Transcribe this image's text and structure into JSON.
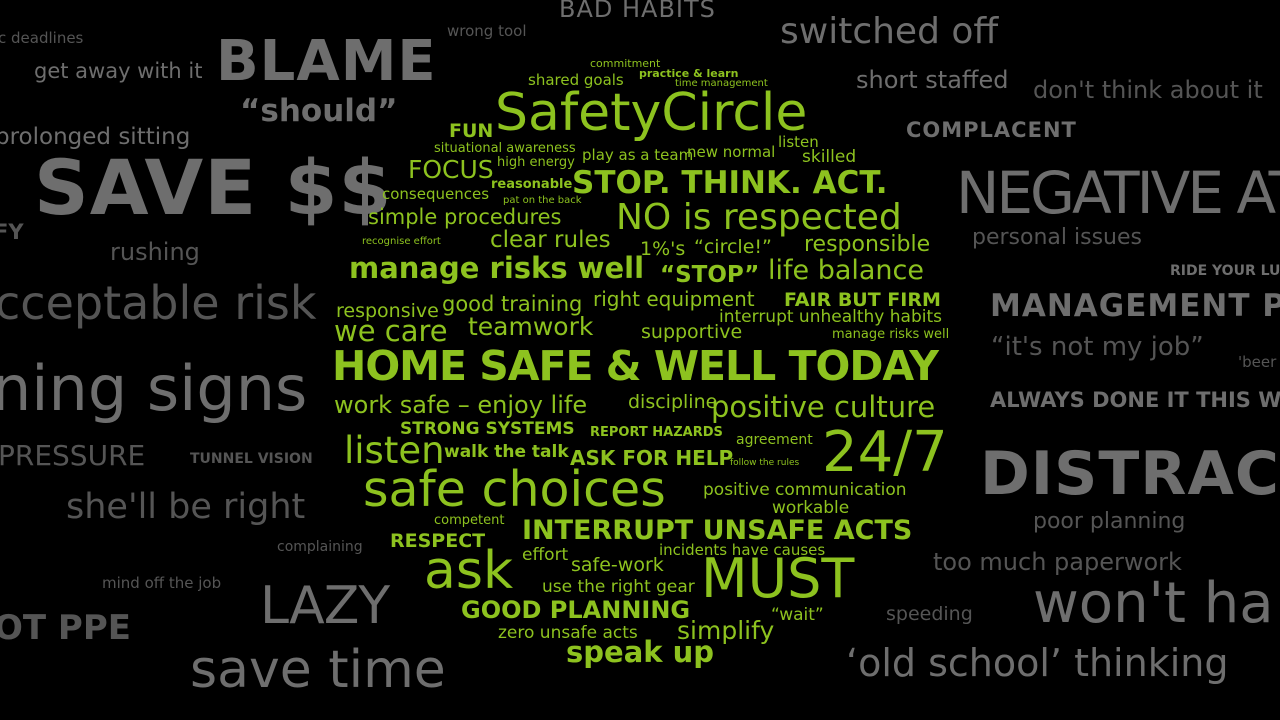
{
  "colors": {
    "background": "#000000",
    "grey": "#6e6e6e",
    "green": "#8dc21f"
  },
  "negative_words": [
    "BAD HABITS",
    "switched off",
    "c deadlines",
    "wrong tool",
    "get away with it",
    "BLAME",
    "“should”",
    "short staffed",
    "don't think about it",
    "COMPLACENT",
    "prolonged sitting",
    "SAVE $$",
    "FY",
    "rushing",
    "NEGATIVE ATT",
    "personal issues",
    "RIDE YOUR LU",
    "cceptable risk",
    "MANAGEMENT PR",
    "“it's not my job”",
    "'beer",
    "ning signs",
    "ALWAYS DONE IT THIS WA",
    "PRESSURE",
    "TUNNEL VISION",
    "DISTRACT",
    "she'll be right",
    "poor planning",
    "complaining",
    "too much paperwork",
    "mind off the job",
    "LAZY",
    "speeding",
    "won't ha",
    "OT PPE",
    "save time",
    "‘old school’ thinking"
  ],
  "positive_words": [
    "commitment",
    "practice & learn",
    "shared goals",
    "time management",
    "SafetyCircle",
    "FUN",
    "listen",
    "situational awareness",
    "play as a team",
    "new normal",
    "skilled",
    "FOCUS",
    "high energy",
    "reasonable",
    "STOP. THINK. ACT.",
    "consequences",
    "pat on the back",
    "simple procedures",
    "NO is respected",
    "recognise effort",
    "clear rules",
    "1%'s",
    "“circle!”",
    "responsible",
    "manage risks well",
    "“STOP”",
    "life balance",
    "responsive",
    "good training",
    "right equipment",
    "FAIR BUT FIRM",
    "we care",
    "teamwork",
    "supportive",
    "interrupt unhealthy habits",
    "manage risks well",
    "HOME SAFE & WELL TODAY",
    "work safe – enjoy life",
    "discipline",
    "positive culture",
    "STRONG SYSTEMS",
    "REPORT HAZARDS",
    "listen",
    "agreement",
    "24/7",
    "walk the talk",
    "ASK FOR HELP",
    "follow the rules",
    "safe choices",
    "positive communication",
    "workable",
    "competent",
    "INTERRUPT UNSAFE ACTS",
    "RESPECT",
    "effort",
    "incidents have causes",
    "ask",
    "safe-work",
    "MUST",
    "use the right gear",
    "GOOD PLANNING",
    "“wait”",
    "zero unsafe acts",
    "simplify",
    "speak up"
  ]
}
